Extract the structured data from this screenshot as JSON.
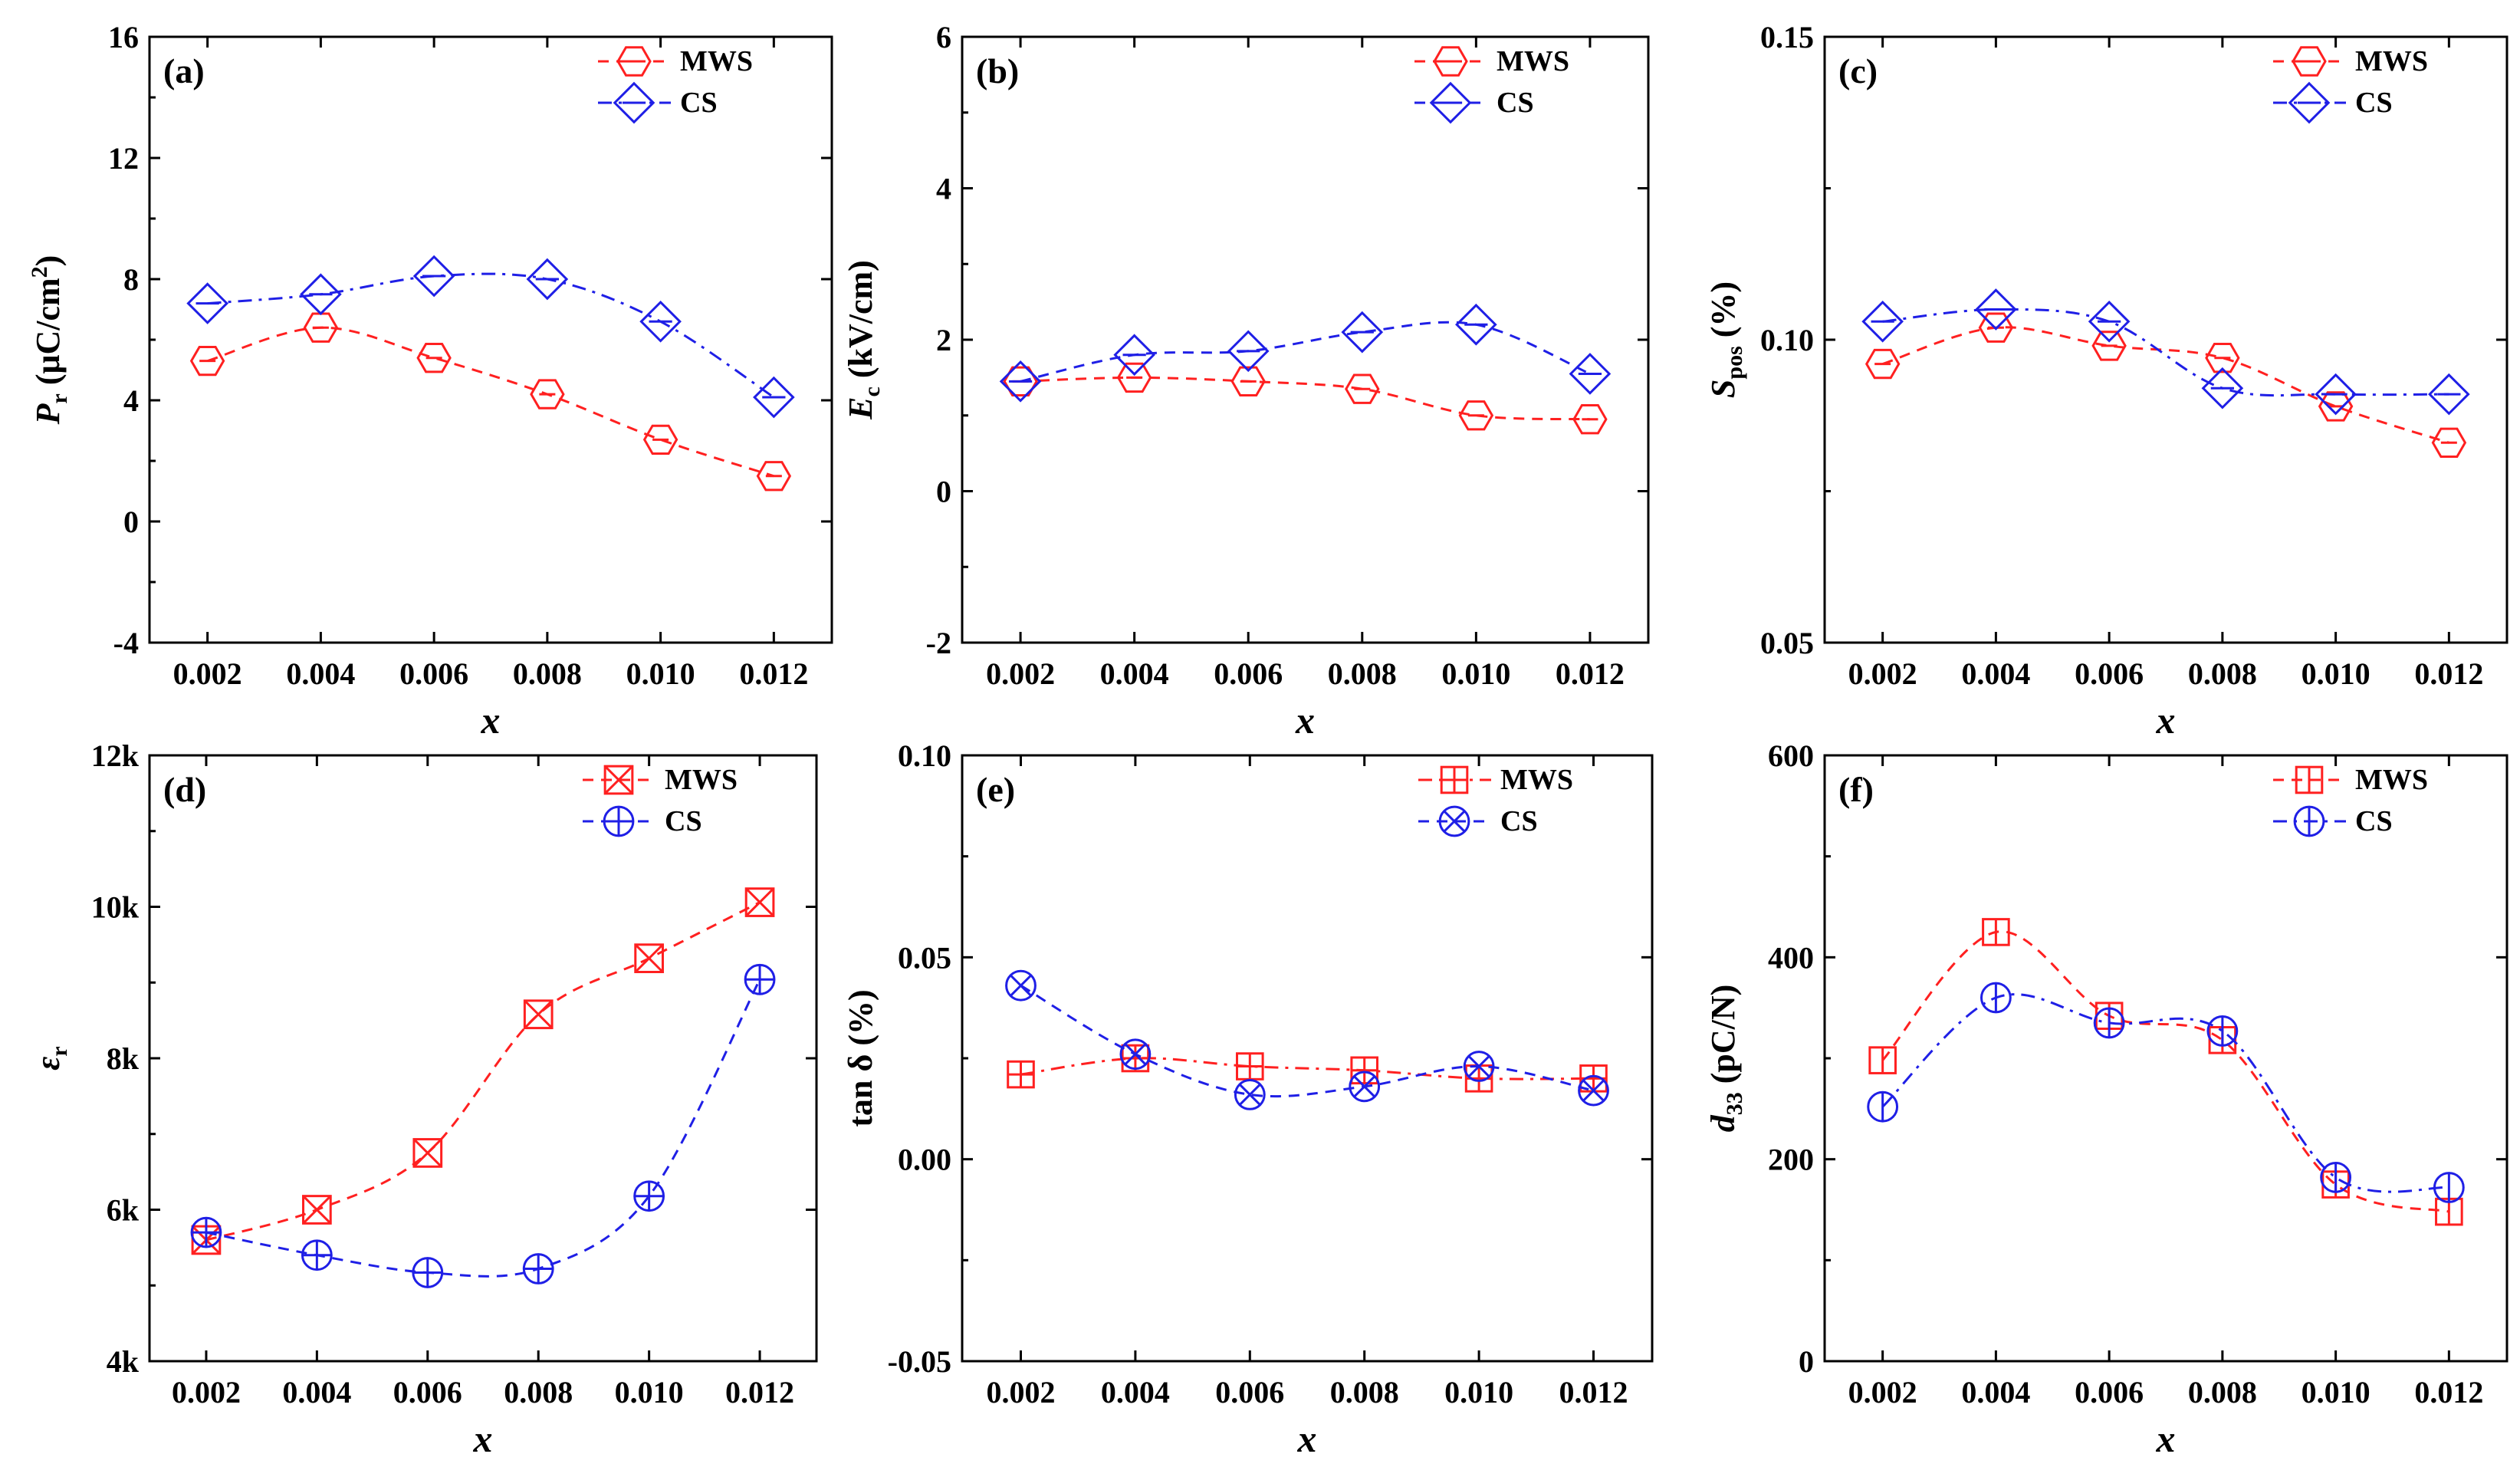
{
  "colors": {
    "MWS": "#ff2020",
    "CS": "#1f1fe6"
  },
  "chart_data": [
    {
      "panel": "(a)",
      "type": "line",
      "xlabel": "x",
      "ylabel": {
        "main": "P",
        "sub": "r",
        "unit": " (μC/cm",
        "sup": "2",
        "end": ")"
      },
      "categories": [
        "0.002",
        "0.004",
        "0.006",
        "0.008",
        "0.010",
        "0.012"
      ],
      "x": [
        0.002,
        0.004,
        0.006,
        0.008,
        0.01,
        0.012
      ],
      "ylim": [
        -4,
        16
      ],
      "yticks": [
        "-4",
        "0",
        "4",
        "8",
        "12",
        "16"
      ],
      "ytick_values": [
        -4,
        0,
        4,
        8,
        12,
        16
      ],
      "series": [
        {
          "name": "MWS",
          "marker": "hexagon",
          "linestyle": "dash",
          "values": [
            5.3,
            6.4,
            5.4,
            4.2,
            2.7,
            1.5
          ]
        },
        {
          "name": "CS",
          "marker": "diamond",
          "linestyle": "dashdot",
          "values": [
            7.2,
            7.5,
            8.1,
            8.0,
            6.6,
            4.1
          ]
        }
      ]
    },
    {
      "panel": "(b)",
      "type": "line",
      "xlabel": "x",
      "ylabel": {
        "main": "E",
        "sub": "c",
        "unit": " (kV/cm)",
        "sup": "",
        "end": ""
      },
      "categories": [
        "0.002",
        "0.004",
        "0.006",
        "0.008",
        "0.010",
        "0.012"
      ],
      "x": [
        0.002,
        0.004,
        0.006,
        0.008,
        0.01,
        0.012
      ],
      "ylim": [
        -2,
        6
      ],
      "yticks": [
        "-2",
        "0",
        "2",
        "4",
        "6"
      ],
      "ytick_values": [
        -2,
        0,
        2,
        4,
        6
      ],
      "series": [
        {
          "name": "MWS",
          "marker": "hexagon",
          "linestyle": "dash",
          "values": [
            1.45,
            1.5,
            1.45,
            1.35,
            1.0,
            0.95
          ]
        },
        {
          "name": "CS",
          "marker": "diamond",
          "linestyle": "dash",
          "values": [
            1.45,
            1.8,
            1.85,
            2.1,
            2.2,
            1.55
          ]
        }
      ]
    },
    {
      "panel": "(c)",
      "type": "line",
      "xlabel": "x",
      "ylabel": {
        "main": "S",
        "sub": "pos",
        "unit": " (%)",
        "sup": "",
        "end": ""
      },
      "categories": [
        "0.002",
        "0.004",
        "0.006",
        "0.008",
        "0.010",
        "0.012"
      ],
      "x": [
        0.002,
        0.004,
        0.006,
        0.008,
        0.01,
        0.012
      ],
      "ylim": [
        0.05,
        0.15
      ],
      "yticks": [
        "0.05",
        "0.10",
        "0.15"
      ],
      "ytick_values": [
        0.05,
        0.1,
        0.15
      ],
      "series": [
        {
          "name": "MWS",
          "marker": "hexagon",
          "linestyle": "dash",
          "values": [
            0.096,
            0.102,
            0.099,
            0.097,
            0.089,
            0.083
          ]
        },
        {
          "name": "CS",
          "marker": "diamond",
          "linestyle": "dashdot",
          "values": [
            0.103,
            0.105,
            0.103,
            0.092,
            0.091,
            0.091
          ]
        }
      ]
    },
    {
      "panel": "(d)",
      "type": "line",
      "xlabel": "x",
      "ylabel": {
        "main": "ε",
        "sub": "r",
        "unit": "",
        "sup": "",
        "end": ""
      },
      "categories": [
        "0.002",
        "0.004",
        "0.006",
        "0.008",
        "0.010",
        "0.012"
      ],
      "x": [
        0.002,
        0.004,
        0.006,
        0.008,
        0.01,
        0.012
      ],
      "ylim": [
        4000,
        12000
      ],
      "yticks": [
        "4k",
        "6k",
        "8k",
        "10k",
        "12k"
      ],
      "ytick_values": [
        4000,
        6000,
        8000,
        10000,
        12000
      ],
      "series": [
        {
          "name": "MWS",
          "marker": "square-x",
          "linestyle": "dash",
          "values": [
            5600,
            6000,
            6750,
            8580,
            9320,
            10060
          ]
        },
        {
          "name": "CS",
          "marker": "circle-plus",
          "linestyle": "dash",
          "values": [
            5700,
            5400,
            5170,
            5220,
            6180,
            9040
          ]
        }
      ]
    },
    {
      "panel": "(e)",
      "type": "line",
      "xlabel": "x",
      "ylabel": {
        "main": "tan ",
        "sub": "",
        "unit": "δ (%)",
        "sup": "",
        "end": ""
      },
      "categories": [
        "0.002",
        "0.004",
        "0.006",
        "0.008",
        "0.010",
        "0.012"
      ],
      "x": [
        0.002,
        0.004,
        0.006,
        0.008,
        0.01,
        0.012
      ],
      "ylim": [
        -0.05,
        0.1
      ],
      "yticks": [
        "-0.05",
        "0.00",
        "0.05",
        "0.10"
      ],
      "ytick_values": [
        -0.05,
        0.0,
        0.05,
        0.1
      ],
      "series": [
        {
          "name": "MWS",
          "marker": "square-plus",
          "linestyle": "dashdot",
          "values": [
            0.021,
            0.025,
            0.023,
            0.022,
            0.02,
            0.02
          ]
        },
        {
          "name": "CS",
          "marker": "circle-x",
          "linestyle": "dash",
          "values": [
            0.043,
            0.026,
            0.016,
            0.018,
            0.023,
            0.017
          ]
        }
      ]
    },
    {
      "panel": "(f)",
      "type": "line",
      "xlabel": "x",
      "ylabel": {
        "main": "d",
        "sub": "33",
        "unit": " (pC/N)",
        "sup": "",
        "end": ""
      },
      "categories": [
        "0.002",
        "0.004",
        "0.006",
        "0.008",
        "0.010",
        "0.012"
      ],
      "x": [
        0.002,
        0.004,
        0.006,
        0.008,
        0.01,
        0.012
      ],
      "ylim": [
        0,
        600
      ],
      "yticks": [
        "0",
        "200",
        "400",
        "600"
      ],
      "ytick_values": [
        0,
        200,
        400,
        600
      ],
      "series": [
        {
          "name": "MWS",
          "marker": "square-vline",
          "linestyle": "dash",
          "values": [
            298,
            425,
            342,
            318,
            175,
            148
          ]
        },
        {
          "name": "CS",
          "marker": "circle-vline",
          "linestyle": "dashdot",
          "values": [
            252,
            360,
            335,
            327,
            182,
            172
          ]
        }
      ]
    }
  ]
}
